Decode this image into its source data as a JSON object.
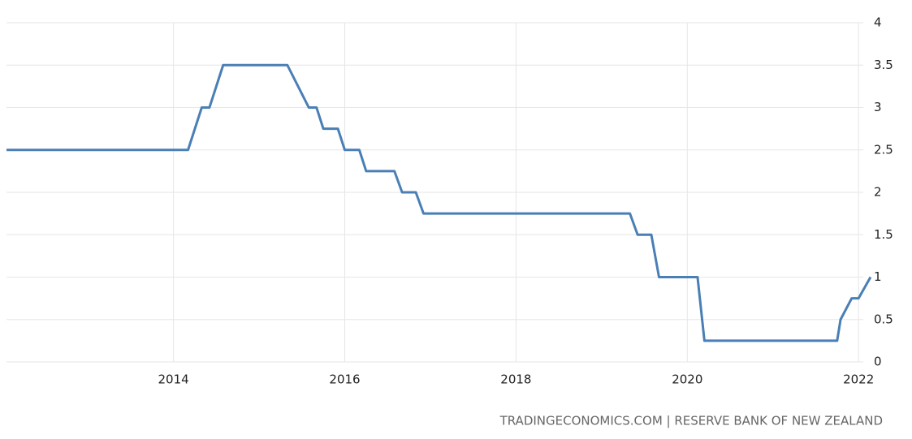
{
  "chart_data": {
    "type": "line",
    "source": "TRADINGECONOMICS.COM | RESERVE BANK OF NEW ZEALAND",
    "x": [
      2012.05,
      2014.17,
      2014.25,
      2014.33,
      2014.42,
      2014.5,
      2014.58,
      2015.33,
      2015.58,
      2015.67,
      2015.75,
      2015.92,
      2016.0,
      2016.17,
      2016.25,
      2016.58,
      2016.67,
      2016.83,
      2016.92,
      2019.33,
      2019.42,
      2019.58,
      2019.67,
      2020.12,
      2020.2,
      2021.75,
      2021.79,
      2021.92,
      2022.0,
      2022.14
    ],
    "series": [
      {
        "color": "#4a7fb5",
        "values": [
          2.5,
          2.5,
          2.75,
          3.0,
          3.0,
          3.25,
          3.5,
          3.5,
          3.0,
          3.0,
          2.75,
          2.75,
          2.5,
          2.5,
          2.25,
          2.25,
          2.0,
          2.0,
          1.75,
          1.75,
          1.5,
          1.5,
          1.0,
          1.0,
          0.25,
          0.25,
          0.5,
          0.75,
          0.75,
          1.0
        ]
      }
    ],
    "xlim": [
      2012.05,
      2022.15
    ],
    "xticks": [
      2014,
      2016,
      2018,
      2020,
      2022
    ],
    "ylim": [
      0,
      4
    ],
    "yticks": [
      0,
      0.5,
      1,
      1.5,
      2,
      2.5,
      3,
      3.5,
      4
    ],
    "grid": true
  }
}
